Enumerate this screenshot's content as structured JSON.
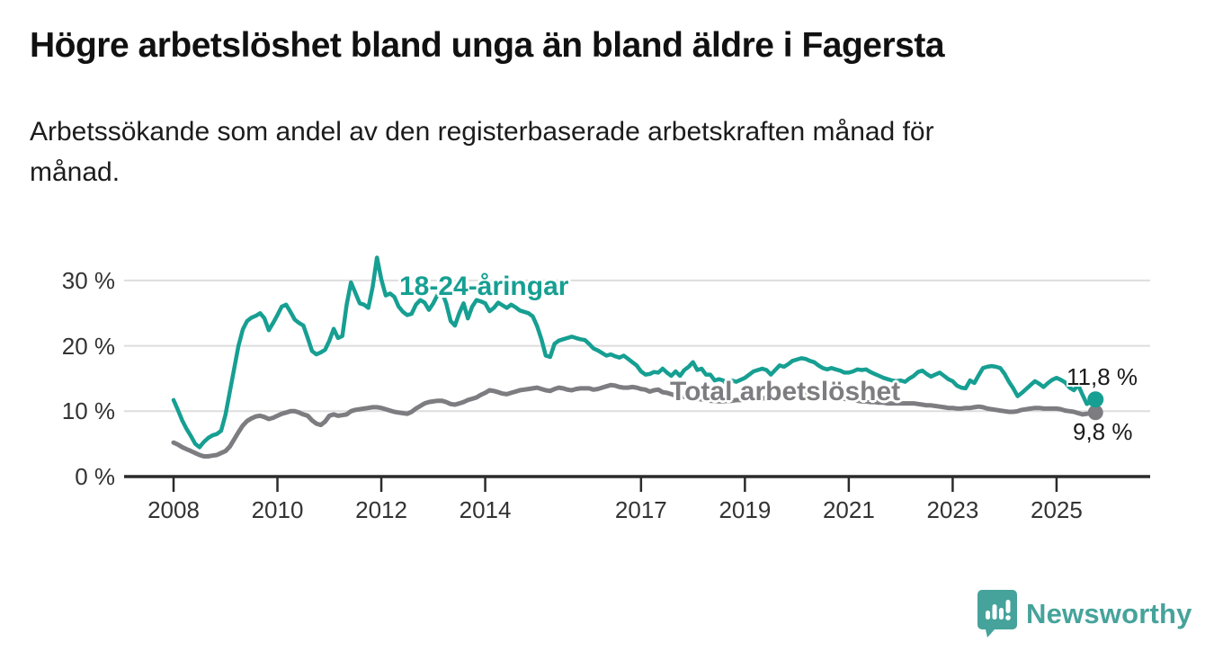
{
  "header": {
    "title": "Högre arbetslöshet bland unga än bland äldre i Fagersta",
    "subtitle": "Arbetssökande som andel av den registerbaserade arbetskraften månad för\nmånad."
  },
  "chart_data": {
    "type": "line",
    "title": "Högre arbetslöshet bland unga än bland äldre i Fagersta",
    "unit": "%",
    "frequency": "monthly",
    "x_start": "2008-01",
    "x_end": "2025-10",
    "ylim": [
      0,
      35
    ],
    "grid": "horizontal",
    "legend_position": "inline-labels",
    "yticks": [
      {
        "value": 0,
        "label": "0 %"
      },
      {
        "value": 10,
        "label": "10 %"
      },
      {
        "value": 20,
        "label": "20 %"
      },
      {
        "value": 30,
        "label": "30 %"
      }
    ],
    "xticks": [
      {
        "value": 2008,
        "label": "2008"
      },
      {
        "value": 2010,
        "label": "2010"
      },
      {
        "value": 2012,
        "label": "2012"
      },
      {
        "value": 2014,
        "label": "2014"
      },
      {
        "value": 2017,
        "label": "2017"
      },
      {
        "value": 2019,
        "label": "2019"
      },
      {
        "value": 2021,
        "label": "2021"
      },
      {
        "value": 2023,
        "label": "2023"
      },
      {
        "value": 2025,
        "label": "2025"
      }
    ],
    "series": [
      {
        "name": "18-24-åringar",
        "color": "#169f92",
        "end_label": "11,8 %",
        "end_value": 11.8,
        "values": [
          11.7,
          10.2,
          8.6,
          7.3,
          6.2,
          5.0,
          4.5,
          5.3,
          5.9,
          6.3,
          6.5,
          7.0,
          9.5,
          13.0,
          16.5,
          20.0,
          22.5,
          23.8,
          24.3,
          24.6,
          25.0,
          24.2,
          22.4,
          23.5,
          24.7,
          26.0,
          26.3,
          25.2,
          24.0,
          23.5,
          23.1,
          21.2,
          19.2,
          18.7,
          19.0,
          19.4,
          20.8,
          22.6,
          21.2,
          21.5,
          26.3,
          29.7,
          28.1,
          26.5,
          26.3,
          25.8,
          29.0,
          33.5,
          30.2,
          27.7,
          28.0,
          27.5,
          26.0,
          25.2,
          24.7,
          24.9,
          26.3,
          27.0,
          26.6,
          25.5,
          26.5,
          27.8,
          28.3,
          26.5,
          23.8,
          23.1,
          25.0,
          26.5,
          24.2,
          26.0,
          27.0,
          26.8,
          26.5,
          25.3,
          25.8,
          26.6,
          26.2,
          25.8,
          26.3,
          25.9,
          25.4,
          25.2,
          25.0,
          24.5,
          23.0,
          21.0,
          18.5,
          18.3,
          20.3,
          20.8,
          21.0,
          21.2,
          21.4,
          21.2,
          21.0,
          20.9,
          20.3,
          19.6,
          19.3,
          18.9,
          18.5,
          18.7,
          18.4,
          18.2,
          18.5,
          18.0,
          17.5,
          17.0,
          16.1,
          15.6,
          15.7,
          16.0,
          15.9,
          16.5,
          15.9,
          15.4,
          16.1,
          15.4,
          16.3,
          16.8,
          17.5,
          16.3,
          16.5,
          15.6,
          15.6,
          14.7,
          14.9,
          14.7,
          14.0,
          14.7,
          14.5,
          14.8,
          15.1,
          15.6,
          16.1,
          16.3,
          16.5,
          16.3,
          15.6,
          16.3,
          17.0,
          16.8,
          17.2,
          17.7,
          17.9,
          18.1,
          18.0,
          17.7,
          17.5,
          17.0,
          16.6,
          16.4,
          16.6,
          16.4,
          16.2,
          15.9,
          15.9,
          16.1,
          16.4,
          16.3,
          16.4,
          16.0,
          15.7,
          15.4,
          15.1,
          14.9,
          14.7,
          14.6,
          14.7,
          14.5,
          15.0,
          15.4,
          16.0,
          16.2,
          15.7,
          15.3,
          15.6,
          15.9,
          15.4,
          14.9,
          14.6,
          13.9,
          13.6,
          13.5,
          14.7,
          14.3,
          15.5,
          16.6,
          16.8,
          16.9,
          16.8,
          16.6,
          15.7,
          14.5,
          13.5,
          12.3,
          12.8,
          13.4,
          14.0,
          14.6,
          14.2,
          13.7,
          14.3,
          14.8,
          15.1,
          14.8,
          14.4,
          13.6,
          13.2,
          14.0,
          12.5,
          11.1,
          11.5,
          11.8
        ]
      },
      {
        "name": "Total arbetslöshet",
        "color": "#7d7d81",
        "end_label": "9,8 %",
        "end_value": 9.8,
        "values": [
          5.2,
          4.9,
          4.5,
          4.2,
          3.9,
          3.6,
          3.3,
          3.1,
          3.1,
          3.2,
          3.3,
          3.6,
          3.9,
          4.6,
          5.7,
          6.8,
          7.8,
          8.5,
          8.9,
          9.2,
          9.3,
          9.1,
          8.8,
          9.0,
          9.3,
          9.6,
          9.8,
          10.0,
          10.0,
          9.8,
          9.5,
          9.3,
          8.6,
          8.1,
          7.9,
          8.4,
          9.3,
          9.5,
          9.3,
          9.4,
          9.5,
          10.0,
          10.2,
          10.3,
          10.4,
          10.5,
          10.6,
          10.6,
          10.5,
          10.3,
          10.1,
          9.9,
          9.8,
          9.7,
          9.6,
          9.9,
          10.4,
          10.8,
          11.2,
          11.4,
          11.5,
          11.6,
          11.6,
          11.4,
          11.1,
          11.0,
          11.2,
          11.4,
          11.7,
          11.9,
          12.1,
          12.5,
          12.8,
          13.2,
          13.1,
          12.9,
          12.7,
          12.6,
          12.8,
          13.0,
          13.2,
          13.3,
          13.4,
          13.5,
          13.6,
          13.4,
          13.2,
          13.1,
          13.4,
          13.6,
          13.5,
          13.3,
          13.2,
          13.4,
          13.5,
          13.5,
          13.5,
          13.3,
          13.4,
          13.6,
          13.8,
          14.0,
          13.9,
          13.7,
          13.6,
          13.6,
          13.7,
          13.6,
          13.4,
          13.3,
          13.0,
          13.2,
          13.3,
          12.9,
          12.8,
          12.6,
          12.4,
          12.3,
          12.2,
          12.1,
          12.0,
          11.9,
          11.8,
          11.7,
          11.6,
          11.6,
          11.5,
          11.5,
          11.6,
          11.6,
          11.7,
          11.7,
          11.8,
          11.8,
          11.9,
          11.9,
          12.0,
          12.0,
          12.1,
          12.1,
          12.2,
          12.2,
          12.3,
          12.3,
          12.4,
          12.4,
          12.5,
          12.6,
          12.6,
          12.5,
          12.4,
          12.3,
          12.2,
          12.1,
          12.0,
          11.9,
          11.8,
          11.7,
          11.6,
          11.5,
          11.5,
          11.4,
          11.4,
          11.3,
          11.3,
          11.2,
          11.2,
          11.2,
          11.2,
          11.2,
          11.2,
          11.2,
          11.1,
          11.0,
          10.9,
          10.9,
          10.8,
          10.7,
          10.6,
          10.5,
          10.5,
          10.4,
          10.4,
          10.5,
          10.5,
          10.6,
          10.7,
          10.6,
          10.4,
          10.3,
          10.2,
          10.1,
          10.0,
          9.9,
          9.9,
          10.0,
          10.2,
          10.3,
          10.4,
          10.5,
          10.5,
          10.4,
          10.4,
          10.4,
          10.4,
          10.3,
          10.1,
          10.0,
          9.9,
          9.7,
          9.5,
          9.6,
          9.7,
          9.8
        ]
      }
    ]
  },
  "footer": {
    "brand": "Newsworthy"
  }
}
